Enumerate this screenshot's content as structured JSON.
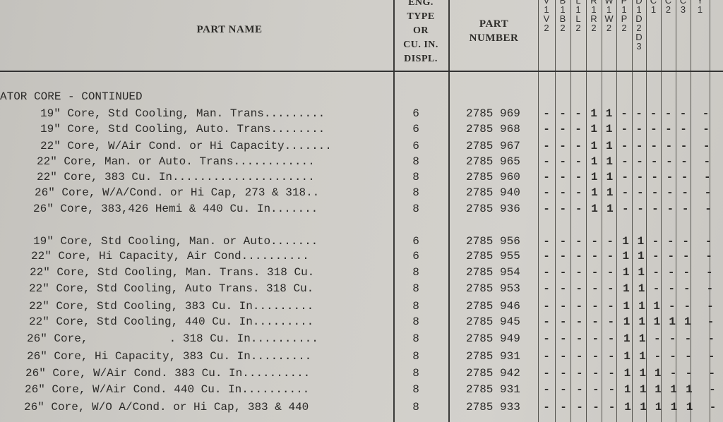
{
  "header": {
    "part_name": "PART NAME",
    "eng_type": [
      "ENG.",
      "TYPE",
      "OR",
      "CU. IN.",
      "DISPL."
    ],
    "part_number": [
      "PART",
      "NUMBER"
    ],
    "model_columns": [
      [
        "V",
        "1",
        "V",
        "2"
      ],
      [
        "B",
        "1",
        "B",
        "2"
      ],
      [
        "L",
        "1",
        "L",
        "2"
      ],
      [
        "R",
        "1",
        "R",
        "2"
      ],
      [
        "W",
        "1",
        "W",
        "2"
      ],
      [
        "P",
        "1",
        "P",
        "2"
      ],
      [
        "D",
        "1",
        "D",
        "2",
        "D",
        "3"
      ],
      [
        "C",
        "1"
      ],
      [
        "C",
        "2"
      ],
      [
        "C",
        "3"
      ],
      [
        "Y",
        "1"
      ]
    ]
  },
  "section_title": "ATOR CORE - CONTINUED",
  "rows": [
    {
      "name": "19\" Core, Std Cooling, Man. Trans.........",
      "eng": "6",
      "part": "2785 969",
      "marks": [
        "-",
        "-",
        "-",
        "1",
        "1",
        "-",
        "-",
        "-",
        "-",
        "-",
        "-"
      ]
    },
    {
      "name": "19\" Core, Std Cooling, Auto. Trans........",
      "eng": "6",
      "part": "2785 968",
      "marks": [
        "-",
        "-",
        "-",
        "1",
        "1",
        "-",
        "-",
        "-",
        "-",
        "-",
        "-"
      ]
    },
    {
      "name": "22\" Core, W/Air Cond. or Hi Capacity.......",
      "eng": "6",
      "part": "2785 967",
      "marks": [
        "-",
        "-",
        "-",
        "1",
        "1",
        "-",
        "-",
        "-",
        "-",
        "-",
        "-"
      ]
    },
    {
      "name": "22\" Core, Man. or Auto. Trans............",
      "eng": "8",
      "part": "2785 965",
      "marks": [
        "-",
        "-",
        "-",
        "1",
        "1",
        "-",
        "-",
        "-",
        "-",
        "-",
        "-"
      ]
    },
    {
      "name": "22\" Core, 383 Cu. In.....................",
      "eng": "8",
      "part": "2785 960",
      "marks": [
        "-",
        "-",
        "-",
        "1",
        "1",
        "-",
        "-",
        "-",
        "-",
        "-",
        "-"
      ]
    },
    {
      "name": "26\" Core, W/A/Cond. or Hi Cap, 273 & 318..",
      "eng": "8",
      "part": "2785 940",
      "marks": [
        "-",
        "-",
        "-",
        "1",
        "1",
        "-",
        "-",
        "-",
        "-",
        "-",
        "-"
      ]
    },
    {
      "name": "26\" Core, 383,426 Hemi & 440 Cu. In.......",
      "eng": "8",
      "part": "2785 936",
      "marks": [
        "-",
        "-",
        "-",
        "1",
        "1",
        "-",
        "-",
        "-",
        "-",
        "-",
        "-"
      ]
    },
    {
      "name": "19\" Core, Std Cooling, Man. or Auto.......",
      "eng": "6",
      "part": "2785 956",
      "marks": [
        "-",
        "-",
        "-",
        "-",
        "-",
        "1",
        "1",
        "-",
        "-",
        "-",
        "-"
      ]
    },
    {
      "name": "22\" Core, Hi Capacity, Air Cond..........",
      "eng": "6",
      "part": "2785 955",
      "marks": [
        "-",
        "-",
        "-",
        "-",
        "-",
        "1",
        "1",
        "-",
        "-",
        "-",
        "-"
      ]
    },
    {
      "name": "22\" Core, Std Cooling, Man. Trans. 318 Cu.",
      "eng": "8",
      "part": "2785 954",
      "marks": [
        "-",
        "-",
        "-",
        "-",
        "-",
        "1",
        "1",
        "-",
        "-",
        "-",
        "-"
      ]
    },
    {
      "name": "22\" Core, Std Cooling, Auto Trans. 318 Cu.",
      "eng": "8",
      "part": "2785 953",
      "marks": [
        "-",
        "-",
        "-",
        "-",
        "-",
        "1",
        "1",
        "-",
        "-",
        "-",
        "-"
      ]
    },
    {
      "name": "22\" Core, Std Cooling, 383 Cu. In.........",
      "eng": "8",
      "part": "2785 946",
      "marks": [
        "-",
        "-",
        "-",
        "-",
        "-",
        "1",
        "1",
        "1",
        "-",
        "-",
        "-"
      ]
    },
    {
      "name": "22\" Core, Std Cooling, 440 Cu. In.........",
      "eng": "8",
      "part": "2785 945",
      "marks": [
        "-",
        "-",
        "-",
        "-",
        "-",
        "1",
        "1",
        "1",
        "1",
        "1",
        "-"
      ]
    },
    {
      "name": "26\" Core,            . 318 Cu. In..........",
      "eng": "8",
      "part": "2785 949",
      "marks": [
        "-",
        "-",
        "-",
        "-",
        "-",
        "1",
        "1",
        "-",
        "-",
        "-",
        "-"
      ]
    },
    {
      "name": "26\" Core, Hi Capacity, 383 Cu. In.........",
      "eng": "8",
      "part": "2785 931",
      "marks": [
        "-",
        "-",
        "-",
        "-",
        "-",
        "1",
        "1",
        "-",
        "-",
        "-",
        "-"
      ]
    },
    {
      "name": "26\" Core, W/Air Cond. 383 Cu. In..........",
      "eng": "8",
      "part": "2785 942",
      "marks": [
        "-",
        "-",
        "-",
        "-",
        "-",
        "1",
        "1",
        "1",
        "-",
        "-",
        "-"
      ]
    },
    {
      "name": "26\" Core, W/Air Cond. 440 Cu. In..........",
      "eng": "8",
      "part": "2785 931",
      "marks": [
        "-",
        "-",
        "-",
        "-",
        "-",
        "1",
        "1",
        "1",
        "1",
        "1",
        "-"
      ]
    },
    {
      "name": "26\" Core, W/O A/Cond. or Hi Cap, 383 & 440",
      "eng": "8",
      "part": "2785 933",
      "marks": [
        "-",
        "-",
        "-",
        "-",
        "-",
        "1",
        "1",
        "1",
        "1",
        "1",
        "-"
      ]
    }
  ]
}
